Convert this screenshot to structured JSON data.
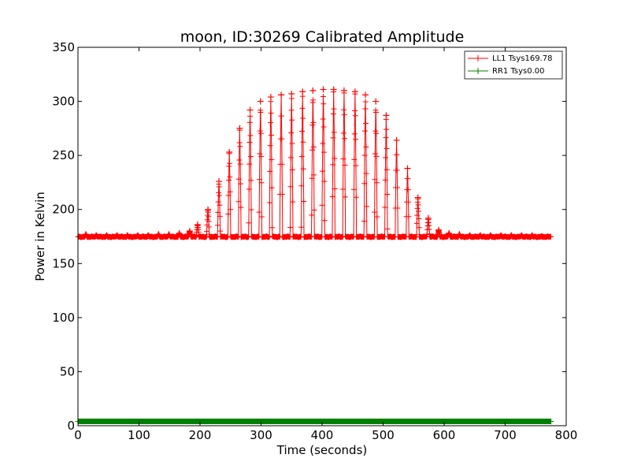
{
  "chart_data": {
    "type": "line",
    "title": "moon, ID:30269 Calibrated Amplitude",
    "xlabel": "Time (seconds)",
    "ylabel": "Power in Kelvin",
    "xlim": [
      0,
      800
    ],
    "ylim": [
      0,
      350
    ],
    "xticks": [
      0,
      100,
      200,
      300,
      400,
      500,
      600,
      700,
      800
    ],
    "yticks": [
      0,
      50,
      100,
      150,
      200,
      250,
      300,
      350
    ],
    "legend": "top-right",
    "grid": false,
    "series": [
      {
        "name": "LL1 Tsys169.78",
        "color": "#ff0000",
        "marker": "+",
        "x_range": [
          0,
          775
        ],
        "baseline": 174,
        "scan_peaks": [
          {
            "x": 13,
            "y": 177
          },
          {
            "x": 30,
            "y": 176
          },
          {
            "x": 47,
            "y": 176
          },
          {
            "x": 64,
            "y": 176
          },
          {
            "x": 81,
            "y": 176
          },
          {
            "x": 98,
            "y": 176
          },
          {
            "x": 115,
            "y": 176
          },
          {
            "x": 132,
            "y": 177
          },
          {
            "x": 149,
            "y": 177
          },
          {
            "x": 166,
            "y": 178
          },
          {
            "x": 183,
            "y": 180
          },
          {
            "x": 196,
            "y": 186
          },
          {
            "x": 213,
            "y": 200
          },
          {
            "x": 231,
            "y": 226
          },
          {
            "x": 248,
            "y": 253
          },
          {
            "x": 265,
            "y": 275
          },
          {
            "x": 282,
            "y": 292
          },
          {
            "x": 299,
            "y": 300
          },
          {
            "x": 316,
            "y": 304
          },
          {
            "x": 333,
            "y": 306
          },
          {
            "x": 350,
            "y": 307
          },
          {
            "x": 368,
            "y": 309
          },
          {
            "x": 385,
            "y": 310
          },
          {
            "x": 402,
            "y": 311
          },
          {
            "x": 419,
            "y": 311
          },
          {
            "x": 436,
            "y": 310
          },
          {
            "x": 454,
            "y": 309
          },
          {
            "x": 471,
            "y": 306
          },
          {
            "x": 488,
            "y": 300
          },
          {
            "x": 505,
            "y": 287
          },
          {
            "x": 522,
            "y": 264
          },
          {
            "x": 540,
            "y": 238
          },
          {
            "x": 557,
            "y": 211
          },
          {
            "x": 574,
            "y": 192
          },
          {
            "x": 591,
            "y": 181
          },
          {
            "x": 608,
            "y": 178
          },
          {
            "x": 625,
            "y": 177
          },
          {
            "x": 642,
            "y": 176
          },
          {
            "x": 659,
            "y": 176
          },
          {
            "x": 676,
            "y": 176
          },
          {
            "x": 693,
            "y": 176
          },
          {
            "x": 710,
            "y": 176
          },
          {
            "x": 727,
            "y": 176
          },
          {
            "x": 744,
            "y": 176
          },
          {
            "x": 761,
            "y": 175
          }
        ]
      },
      {
        "name": "RR1 Tsys0.00",
        "color": "#008000",
        "marker": "+",
        "x_range": [
          0,
          775
        ],
        "values_constant": 4
      }
    ]
  }
}
